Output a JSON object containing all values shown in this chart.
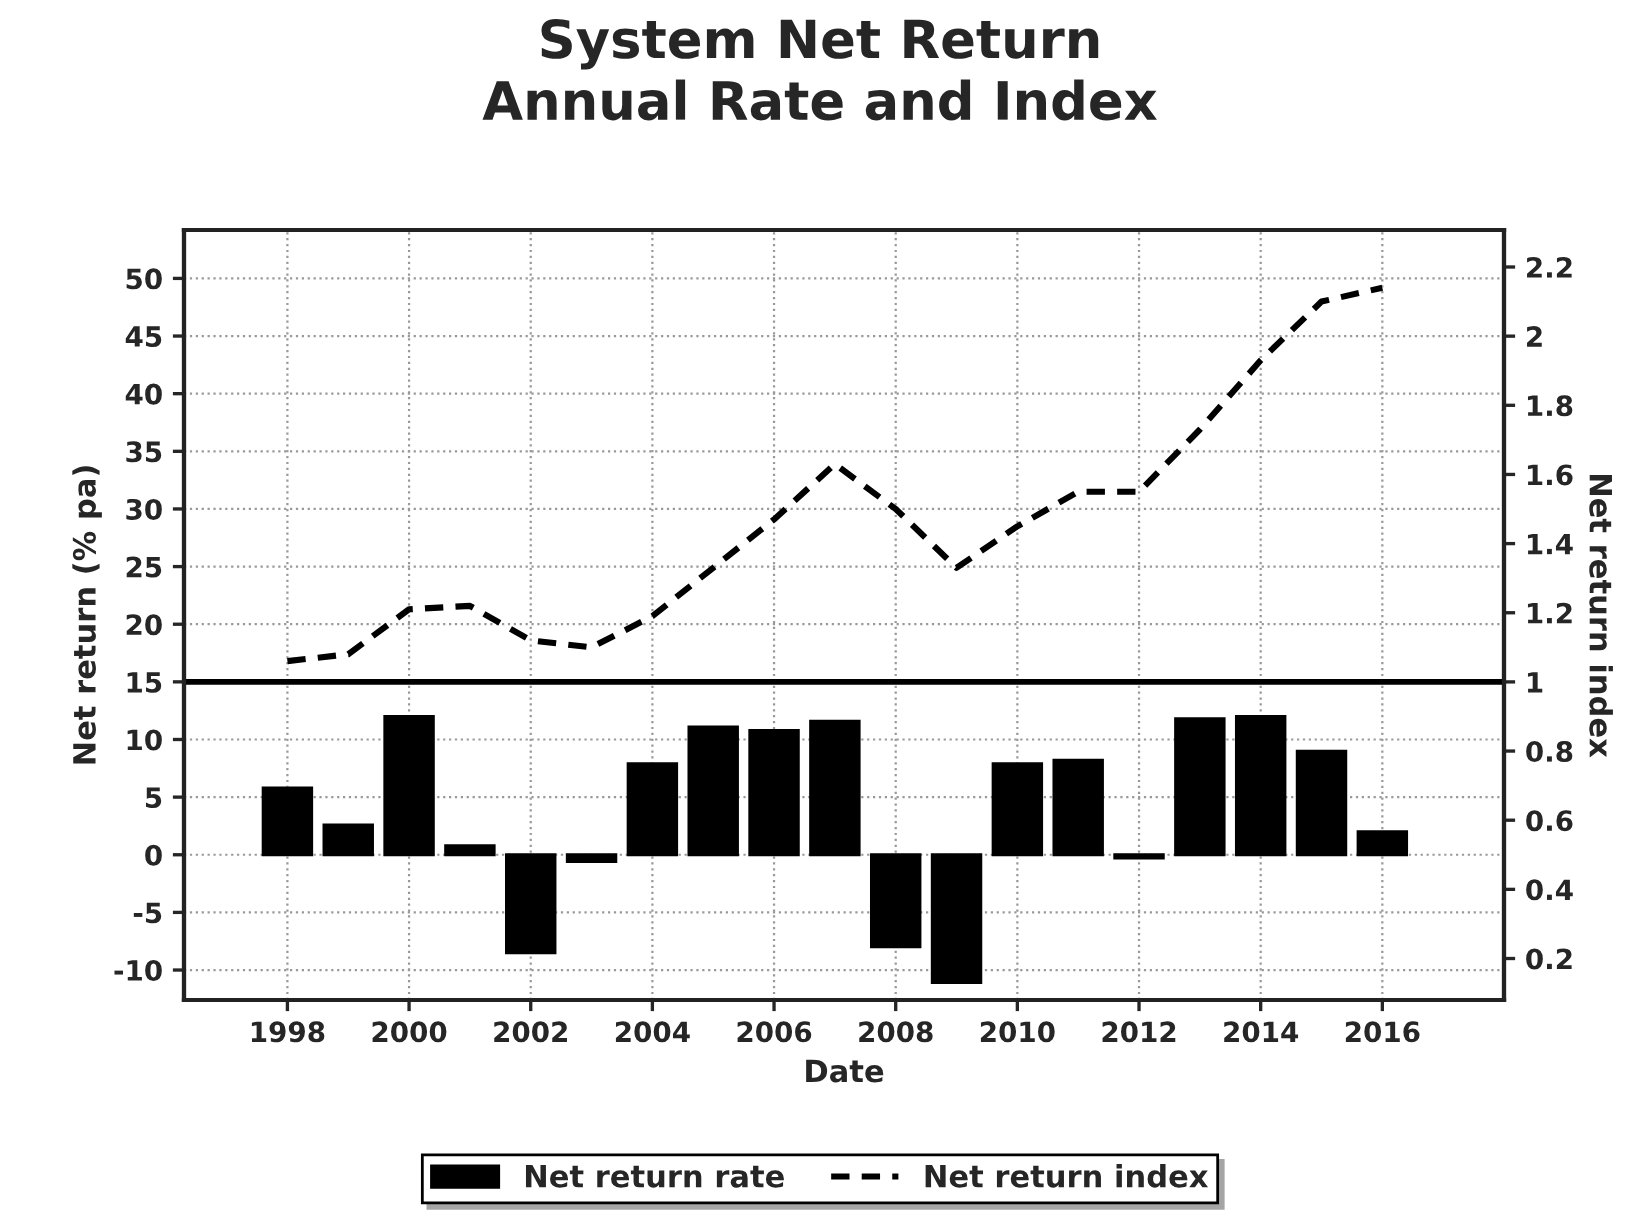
{
  "chart_data": {
    "type": "bar",
    "title": "System Net Return\nAnnual Rate and Index",
    "xlabel": "Date",
    "ylabel": "Net return (% pa)",
    "y2label": "Net return index",
    "x": [
      1998,
      1999,
      2000,
      2001,
      2002,
      2003,
      2004,
      2005,
      2006,
      2007,
      2008,
      2009,
      2010,
      2011,
      2012,
      2013,
      2014,
      2015,
      2016
    ],
    "series": [
      {
        "name": "Net return rate",
        "color": "#000000",
        "values": [
          5.8,
          2.6,
          12.0,
          0.8,
          -8.5,
          -0.6,
          7.9,
          11.1,
          10.8,
          11.6,
          -8.0,
          -11.1,
          7.9,
          8.2,
          -0.3,
          11.8,
          12.0,
          9.0,
          2.0
        ]
      },
      {
        "name": "Net return index",
        "type": "line",
        "axis": "y2",
        "color": "#000000",
        "line_style": "dashed",
        "values": [
          1.06,
          1.08,
          1.21,
          1.22,
          1.12,
          1.1,
          1.19,
          1.33,
          1.47,
          1.63,
          1.5,
          1.33,
          1.45,
          1.55,
          1.55,
          1.73,
          1.93,
          2.1,
          2.14
        ]
      }
    ],
    "xlim": [
      1996.3,
      2018.0
    ],
    "xticks": [
      1998,
      2000,
      2002,
      2004,
      2006,
      2008,
      2010,
      2012,
      2014,
      2016
    ],
    "ylim": [
      -12.6,
      54.2
    ],
    "yticks": [
      -10,
      -5,
      0,
      5,
      10,
      15,
      20,
      25,
      30,
      35,
      40,
      45,
      50
    ],
    "y2lim": [
      0.08,
      2.307
    ],
    "y2ticks": [
      0.2,
      0.4,
      0.6,
      0.8,
      1,
      1.2,
      1.4,
      1.6,
      1.8,
      2,
      2.2
    ],
    "ref_lines": [
      {
        "axis": "y",
        "value": 15,
        "color": "#000000",
        "line_style": "solid"
      }
    ],
    "grid": true,
    "legend": "bottom"
  }
}
